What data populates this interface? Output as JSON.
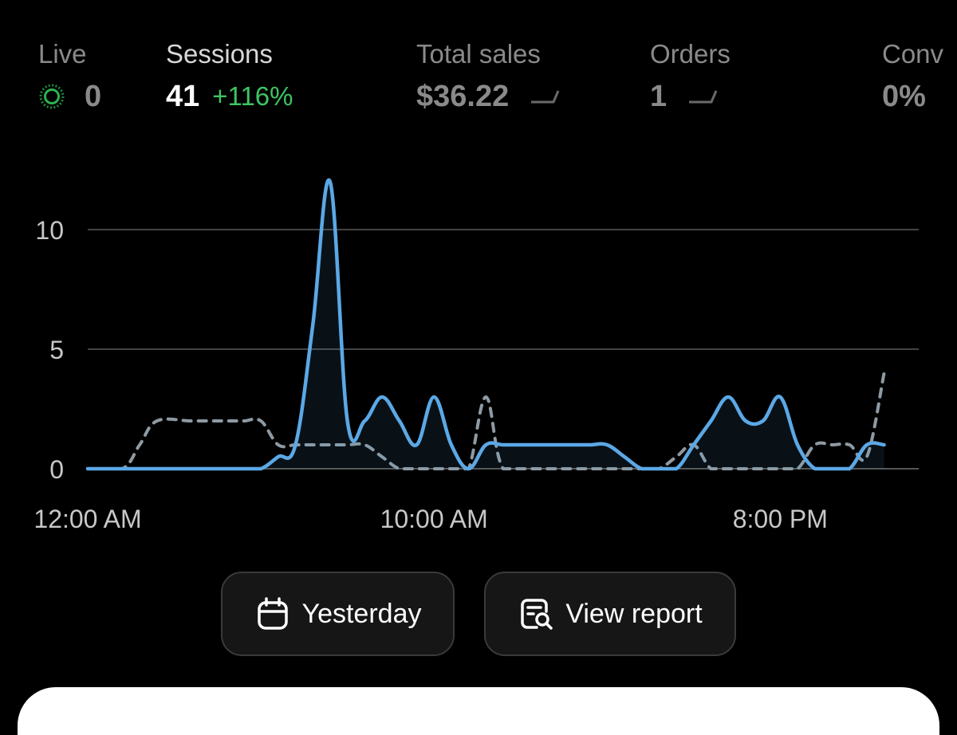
{
  "metrics": {
    "live": {
      "label": "Live",
      "value": "0"
    },
    "sessions": {
      "label": "Sessions",
      "value": "41",
      "delta": "+116%"
    },
    "total_sales": {
      "label": "Total sales",
      "value": "$36.22"
    },
    "orders": {
      "label": "Orders",
      "value": "1"
    },
    "conversion": {
      "label": "Conv",
      "value": "0%"
    }
  },
  "colors": {
    "accent_line": "#5ba8e6",
    "comparison_line": "#8e9aa3",
    "delta_positive": "#3ec463",
    "live_indicator": "#1f8a3a"
  },
  "chart_data": {
    "type": "line",
    "x_tick_labels": [
      "12:00 AM",
      "10:00 AM",
      "8:00 PM"
    ],
    "x_tick_positions_hour": [
      0,
      10,
      20
    ],
    "y_ticks": [
      0,
      5,
      10
    ],
    "ylim": [
      0,
      12
    ],
    "grid": true,
    "series": [
      {
        "style": "solid",
        "color": "#5ba8e6",
        "x_hour": [
          0,
          1,
          2,
          3,
          3.5,
          4,
          4.5,
          5,
          5.5,
          6,
          6.5,
          7,
          7.5,
          8,
          8.5,
          9,
          9.5,
          10,
          10.5,
          11,
          11.5,
          12,
          12.5,
          13,
          13.5,
          14,
          14.5,
          15,
          15.5,
          16,
          16.5,
          17,
          17.5,
          18,
          18.5,
          19,
          19.5,
          20,
          20.5,
          21,
          21.5,
          22,
          22.5,
          23
        ],
        "values": [
          0,
          0,
          0,
          0,
          0,
          0,
          0,
          0,
          0.5,
          1,
          6,
          12,
          2,
          2,
          3,
          2,
          1,
          3,
          1,
          0,
          1,
          1,
          1,
          1,
          1,
          1,
          1,
          1,
          0.5,
          0,
          0,
          0,
          1,
          2,
          3,
          2,
          2,
          3,
          1,
          0,
          0,
          0,
          1,
          1
        ]
      },
      {
        "style": "dashed",
        "color": "#8e9aa3",
        "x_hour": [
          0,
          1,
          1.5,
          2,
          3,
          4,
          4.5,
          5,
          5.5,
          6,
          6.5,
          7,
          7.5,
          8,
          8.5,
          9,
          9.5,
          10,
          10.5,
          11,
          11.5,
          12,
          13,
          14,
          15,
          16,
          16.5,
          17,
          17.5,
          18,
          18.5,
          19,
          19.5,
          20,
          20.5,
          21,
          21.5,
          22,
          22.5,
          23
        ],
        "values": [
          0,
          0,
          1,
          2,
          2,
          2,
          2,
          2,
          1,
          1,
          1,
          1,
          1,
          1,
          0.5,
          0,
          0,
          0,
          0,
          0,
          3,
          0,
          0,
          0,
          0,
          0,
          0,
          0.5,
          1,
          0,
          0,
          0,
          0,
          0,
          0,
          1,
          1,
          1,
          0.5,
          4
        ]
      }
    ]
  },
  "buttons": {
    "yesterday": {
      "label": "Yesterday",
      "icon": "calendar-icon"
    },
    "view_report": {
      "label": "View report",
      "icon": "report-search-icon"
    }
  }
}
